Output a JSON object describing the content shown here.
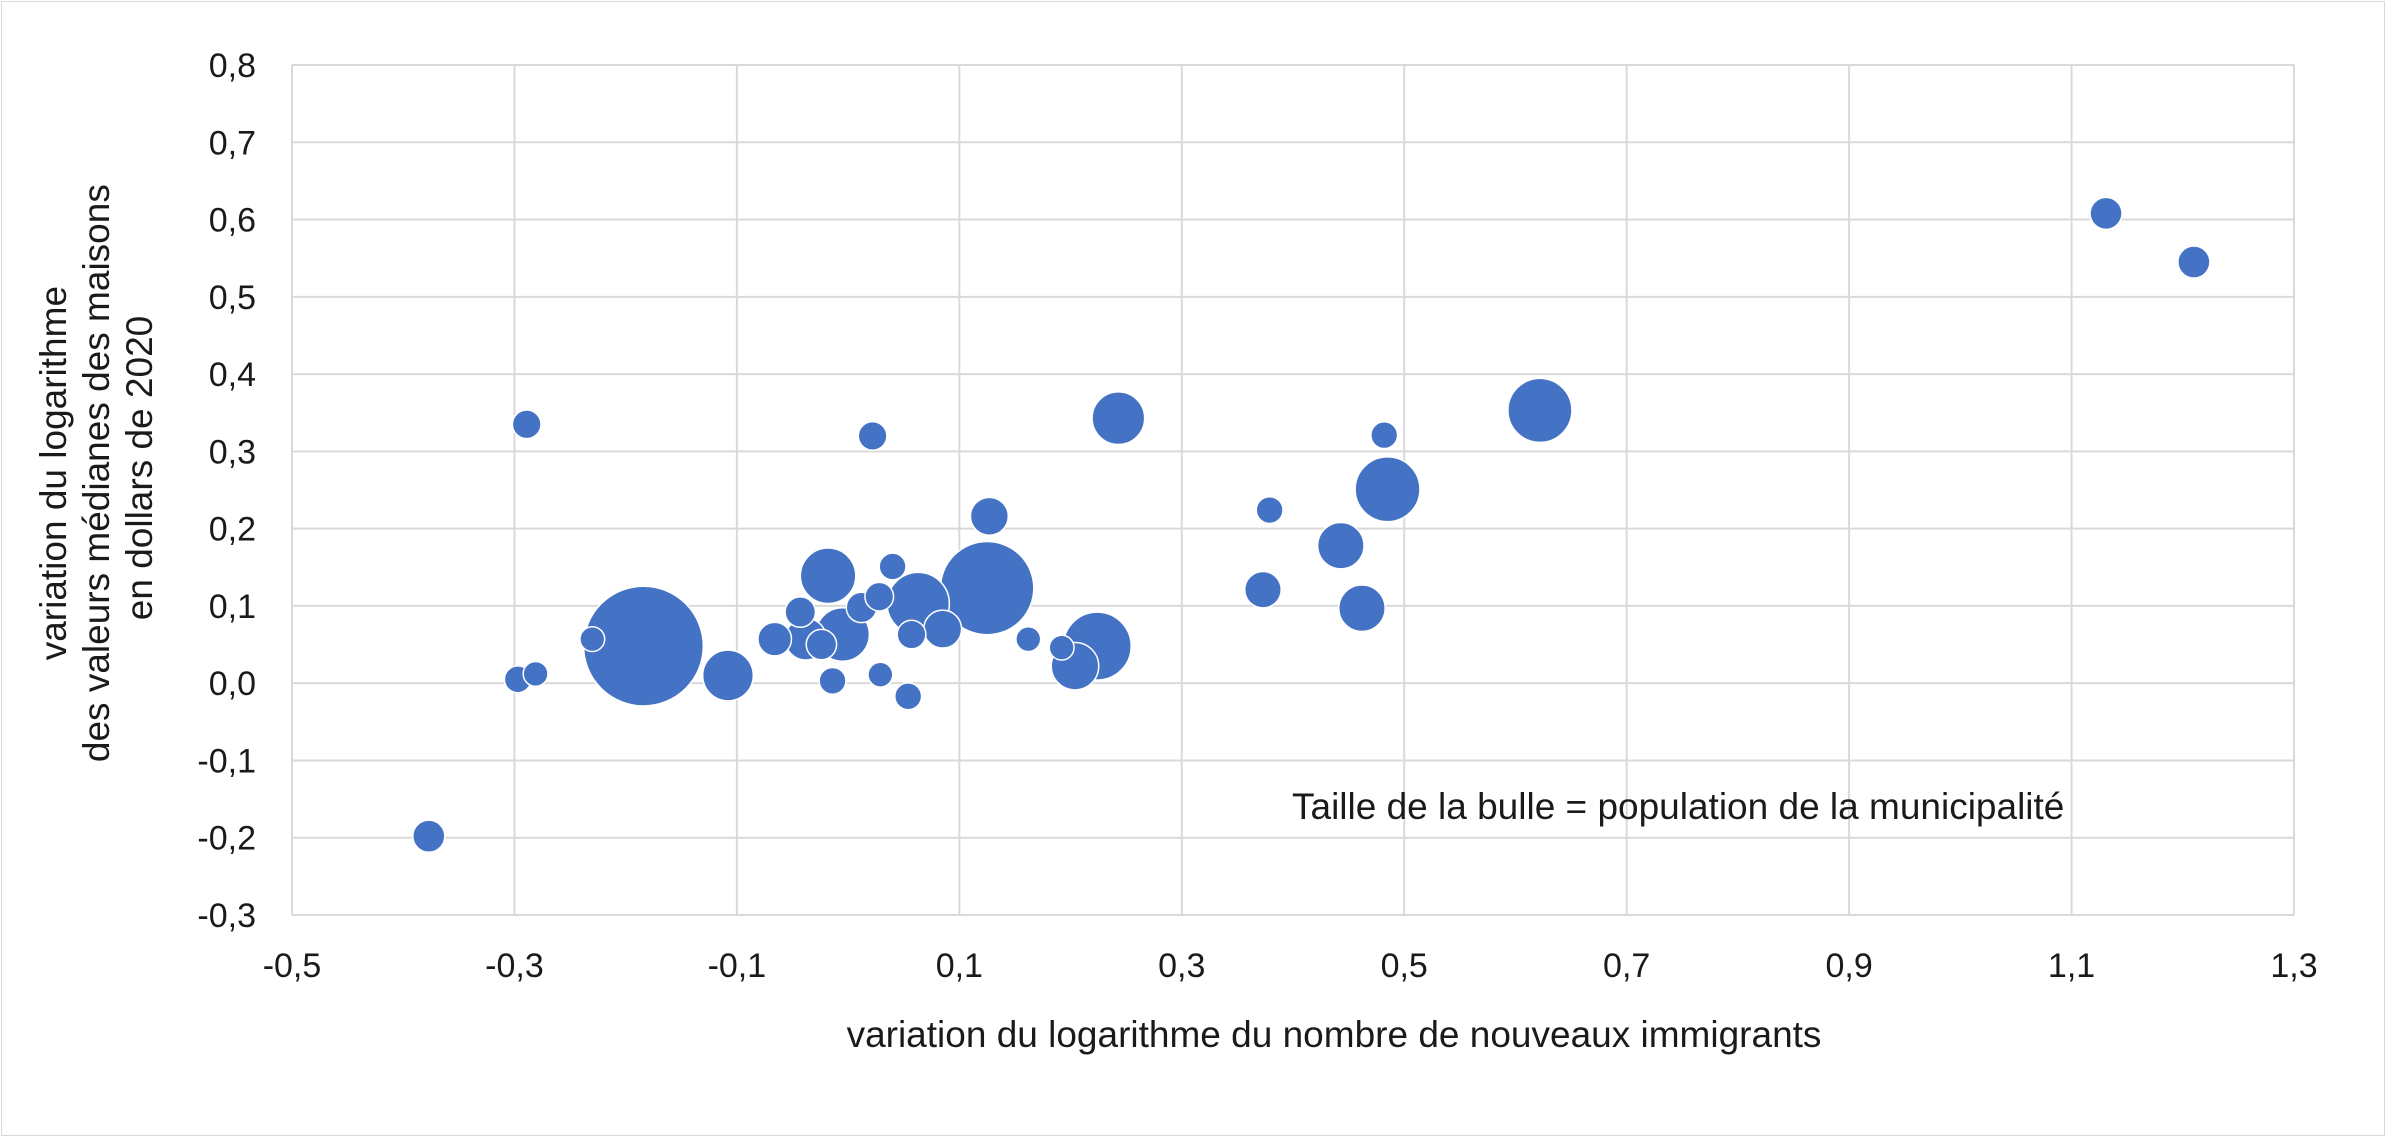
{
  "chart_data": {
    "type": "scatter",
    "bubble": true,
    "xlabel": "variation du logarithme du nombre de nouveaux immigrants",
    "ylabel": [
      "variation du logarithme",
      "des valeurs médianes des maisons",
      "en dollars de 2020"
    ],
    "annotation": "Taille de la bulle = population de la municipalité",
    "xlim": [
      -0.5,
      1.3
    ],
    "ylim": [
      -0.3,
      0.8
    ],
    "x_ticks": [
      -0.5,
      -0.3,
      -0.1,
      0.1,
      0.3,
      0.5,
      0.7,
      0.9,
      1.1,
      1.3
    ],
    "x_tick_labels": [
      "-0,5",
      "-0,3",
      "-0,1",
      "0,1",
      "0,3",
      "0,5",
      "0,7",
      "0,9",
      "1,1",
      "1,3"
    ],
    "y_ticks": [
      -0.3,
      -0.2,
      -0.1,
      0.0,
      0.1,
      0.2,
      0.3,
      0.4,
      0.5,
      0.6,
      0.7,
      0.8
    ],
    "y_tick_labels": [
      "-0,3",
      "-0,2",
      "-0,1",
      "0,0",
      "0,1",
      "0,2",
      "0,3",
      "0,4",
      "0,5",
      "0,6",
      "0,7",
      "0,8"
    ],
    "grid": true,
    "color": "#4472c4",
    "points": [
      {
        "x": -0.377,
        "y": -0.198,
        "size": 1.0
      },
      {
        "x": -0.297,
        "y": 0.005,
        "size": 0.7
      },
      {
        "x": -0.281,
        "y": 0.012,
        "size": 0.6
      },
      {
        "x": -0.289,
        "y": 0.335,
        "size": 0.8
      },
      {
        "x": -0.23,
        "y": 0.057,
        "size": 0.6
      },
      {
        "x": -0.184,
        "y": 0.048,
        "size": 14.0
      },
      {
        "x": -0.108,
        "y": 0.01,
        "size": 2.5
      },
      {
        "x": -0.066,
        "y": 0.057,
        "size": 1.1
      },
      {
        "x": -0.043,
        "y": 0.092,
        "size": 0.9
      },
      {
        "x": -0.038,
        "y": 0.057,
        "size": 1.7
      },
      {
        "x": -0.024,
        "y": 0.05,
        "size": 0.9
      },
      {
        "x": -0.018,
        "y": 0.139,
        "size": 3.0
      },
      {
        "x": -0.014,
        "y": 0.003,
        "size": 0.7
      },
      {
        "x": -0.005,
        "y": 0.063,
        "size": 2.8
      },
      {
        "x": 0.012,
        "y": 0.098,
        "size": 0.9
      },
      {
        "x": 0.022,
        "y": 0.32,
        "size": 0.8
      },
      {
        "x": 0.028,
        "y": 0.112,
        "size": 0.8
      },
      {
        "x": 0.029,
        "y": 0.011,
        "size": 0.6
      },
      {
        "x": 0.04,
        "y": 0.151,
        "size": 0.7
      },
      {
        "x": 0.054,
        "y": -0.017,
        "size": 0.7
      },
      {
        "x": 0.057,
        "y": 0.063,
        "size": 0.8
      },
      {
        "x": 0.063,
        "y": 0.103,
        "size": 3.8
      },
      {
        "x": 0.085,
        "y": 0.07,
        "size": 1.4
      },
      {
        "x": 0.125,
        "y": 0.123,
        "size": 8.5
      },
      {
        "x": 0.127,
        "y": 0.216,
        "size": 1.4
      },
      {
        "x": 0.162,
        "y": 0.057,
        "size": 0.6
      },
      {
        "x": 0.192,
        "y": 0.046,
        "size": 0.6
      },
      {
        "x": 0.204,
        "y": 0.022,
        "size": 2.2
      },
      {
        "x": 0.224,
        "y": 0.048,
        "size": 4.5
      },
      {
        "x": 0.243,
        "y": 0.343,
        "size": 2.7
      },
      {
        "x": 0.373,
        "y": 0.121,
        "size": 1.3
      },
      {
        "x": 0.379,
        "y": 0.224,
        "size": 0.7
      },
      {
        "x": 0.443,
        "y": 0.178,
        "size": 2.1
      },
      {
        "x": 0.462,
        "y": 0.097,
        "size": 2.1
      },
      {
        "x": 0.482,
        "y": 0.321,
        "size": 0.7
      },
      {
        "x": 0.485,
        "y": 0.251,
        "size": 4.1
      },
      {
        "x": 0.622,
        "y": 0.353,
        "size": 4.0
      },
      {
        "x": 1.131,
        "y": 0.608,
        "size": 1.0
      },
      {
        "x": 1.21,
        "y": 0.545,
        "size": 1.0
      }
    ]
  }
}
